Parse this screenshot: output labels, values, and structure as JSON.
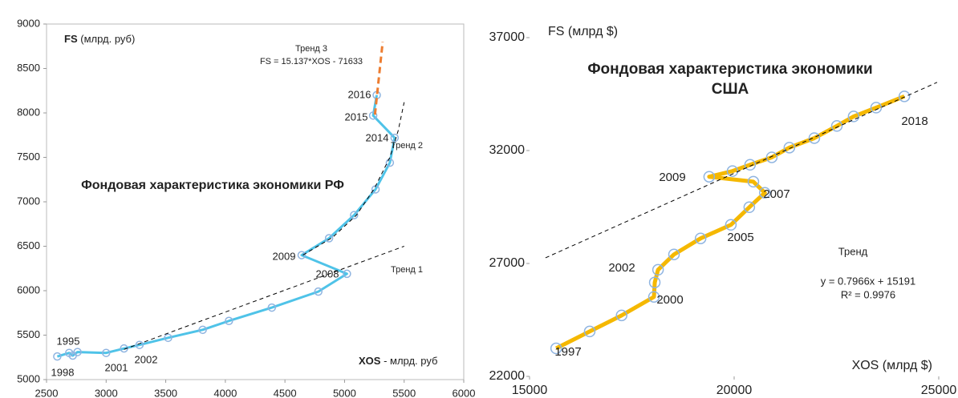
{
  "chart_data": [
    {
      "type": "line",
      "title": "Фондовая характеристика экономики РФ",
      "y_label": {
        "bold": "FS",
        "rest": " (млрд. руб)"
      },
      "x_label": {
        "bold": "XOS",
        "rest": " - млрд. руб"
      },
      "xlim": [
        2500,
        6000
      ],
      "xticks": [
        2500,
        3000,
        3500,
        4000,
        4500,
        5000,
        5500,
        6000
      ],
      "ylim": [
        5000,
        9000
      ],
      "yticks": [
        5000,
        5500,
        6000,
        6500,
        7000,
        7500,
        8000,
        8500,
        9000
      ],
      "series": [
        {
          "color": "#4fc3e8",
          "line_width": 3,
          "markers": true,
          "marker_color": "#8fb4e0",
          "x": [
            2590,
            2690,
            2720,
            2760,
            3000,
            3150,
            3280,
            3520,
            3810,
            4030,
            4390,
            4780,
            5020,
            4640,
            4870,
            5080,
            5260,
            5380,
            5420,
            5240,
            5270
          ],
          "values": [
            5260,
            5300,
            5270,
            5310,
            5300,
            5350,
            5390,
            5470,
            5560,
            5660,
            5810,
            5990,
            6190,
            6400,
            6590,
            6850,
            7140,
            7440,
            7720,
            7970,
            8200
          ],
          "point_labels": [
            "1998",
            "1995",
            null,
            null,
            "2001",
            null,
            "2002",
            null,
            null,
            null,
            null,
            null,
            "2008",
            "2009",
            null,
            null,
            null,
            null,
            "2014",
            "2015",
            "2016"
          ]
        },
        {
          "color": "#000000",
          "line_width": 1,
          "dashed": true,
          "x": [
            3150,
            5500
          ],
          "values": [
            5340,
            6500
          ]
        },
        {
          "color": "#000000",
          "line_width": 1,
          "dashed": true,
          "x": [
            4650,
            4900,
            5100,
            5250,
            5380,
            5450,
            5500
          ],
          "values": [
            6400,
            6600,
            6850,
            7150,
            7500,
            7800,
            8120
          ]
        },
        {
          "color": "#ed7d31",
          "line_width": 3,
          "dashed": true,
          "x": [
            5255,
            5320
          ],
          "values": [
            7980,
            8800
          ]
        }
      ],
      "annotations": [
        "Тренд 1",
        "Тренд 2",
        "Тренд 3",
        "FS = 15.137*XOS - 71633"
      ]
    },
    {
      "type": "line",
      "title": "Фондовая характеристика экономики США",
      "y_label": {
        "rest": "FS (млрд $)"
      },
      "x_label": {
        "rest": "XOS (млрд $)"
      },
      "xlim": [
        15000,
        25000
      ],
      "xticks": [
        15000,
        20000,
        25000
      ],
      "ylim": [
        22000,
        37000
      ],
      "yticks": [
        22000,
        27000,
        32000,
        37000
      ],
      "series": [
        {
          "color": "#f5b800",
          "line_width": 5,
          "markers": true,
          "marker_color": "#8fb4e0",
          "x": [
            15650,
            16470,
            17250,
            18040,
            18060,
            18140,
            18530,
            19180,
            19920,
            20370,
            20750,
            20470,
            19390,
            19960,
            20390,
            20920,
            21350,
            21960,
            22510,
            22920,
            23470,
            24160
          ],
          "values": [
            23240,
            23990,
            24700,
            25520,
            26160,
            26720,
            27400,
            28110,
            28710,
            29490,
            30130,
            30620,
            30840,
            31090,
            31370,
            31700,
            32130,
            32550,
            33090,
            33510,
            33900,
            34400
          ],
          "point_labels": [
            "1997",
            null,
            null,
            "2000",
            null,
            "2002",
            null,
            null,
            "2005",
            null,
            "2007",
            null,
            "2009",
            null,
            null,
            null,
            null,
            null,
            null,
            null,
            null,
            "2018"
          ]
        },
        {
          "color": "#000000",
          "line_width": 1,
          "dashed": true,
          "x": [
            15390,
            24960
          ],
          "values": [
            27250,
            35020
          ]
        }
      ],
      "annotations": [
        "Тренд",
        "y = 0.7966x + 15191",
        "R² = 0.9976"
      ]
    }
  ]
}
